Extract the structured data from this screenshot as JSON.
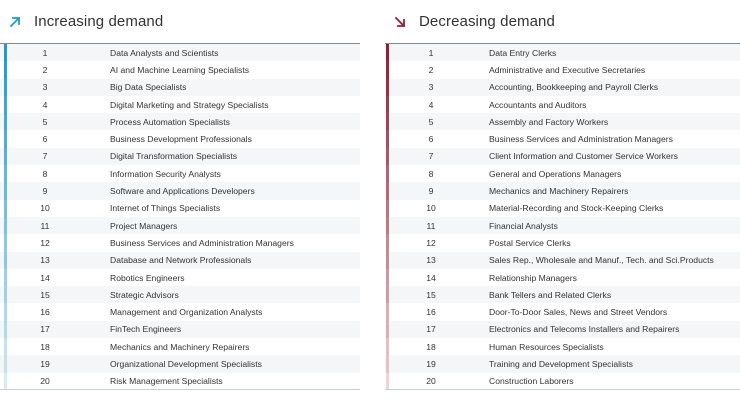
{
  "increasing": {
    "title": "Increasing demand",
    "icon": "arrow-up-right-icon",
    "accent": "#1a9bd7",
    "items": [
      {
        "rank": "1",
        "label": "Data Analysts and Scientists"
      },
      {
        "rank": "2",
        "label": "AI and Machine Learning Specialists"
      },
      {
        "rank": "3",
        "label": "Big Data Specialists"
      },
      {
        "rank": "4",
        "label": "Digital Marketing and Strategy Specialists"
      },
      {
        "rank": "5",
        "label": "Process Automation Specialists"
      },
      {
        "rank": "6",
        "label": "Business Development Professionals"
      },
      {
        "rank": "7",
        "label": "Digital Transformation Specialists"
      },
      {
        "rank": "8",
        "label": "Information Security Analysts"
      },
      {
        "rank": "9",
        "label": "Software and Applications Developers"
      },
      {
        "rank": "10",
        "label": "Internet of Things Specialists"
      },
      {
        "rank": "11",
        "label": "Project Managers"
      },
      {
        "rank": "12",
        "label": "Business Services and Administration Managers"
      },
      {
        "rank": "13",
        "label": "Database and Network Professionals"
      },
      {
        "rank": "14",
        "label": "Robotics Engineers"
      },
      {
        "rank": "15",
        "label": "Strategic Advisors"
      },
      {
        "rank": "16",
        "label": "Management and Organization Analysts"
      },
      {
        "rank": "17",
        "label": "FinTech Engineers"
      },
      {
        "rank": "18",
        "label": "Mechanics and Machinery Repairers"
      },
      {
        "rank": "19",
        "label": "Organizational Development Specialists"
      },
      {
        "rank": "20",
        "label": "Risk Management Specialists"
      }
    ]
  },
  "decreasing": {
    "title": "Decreasing demand",
    "icon": "arrow-down-right-icon",
    "accent": "#9b1b30",
    "items": [
      {
        "rank": "1",
        "label": "Data Entry Clerks"
      },
      {
        "rank": "2",
        "label": "Administrative and Executive Secretaries"
      },
      {
        "rank": "3",
        "label": "Accounting,  Bookkeeping and Payroll Clerks"
      },
      {
        "rank": "4",
        "label": "Accountants and Auditors"
      },
      {
        "rank": "5",
        "label": "Assembly and Factory Workers"
      },
      {
        "rank": "6",
        "label": "Business Services and Administration Managers"
      },
      {
        "rank": "7",
        "label": "Client Information and Customer Service Workers"
      },
      {
        "rank": "8",
        "label": "General and Operations Managers"
      },
      {
        "rank": "9",
        "label": "Mechanics and Machinery Repairers"
      },
      {
        "rank": "10",
        "label": "Material-Recording and Stock-Keeping Clerks"
      },
      {
        "rank": "11",
        "label": "Financial Analysts"
      },
      {
        "rank": "12",
        "label": "Postal Service Clerks"
      },
      {
        "rank": "13",
        "label": "Sales Rep., Wholesale and Manuf., Tech. and Sci.Products"
      },
      {
        "rank": "14",
        "label": "Relationship Managers"
      },
      {
        "rank": "15",
        "label": "Bank Tellers and Related Clerks"
      },
      {
        "rank": "16",
        "label": "Door-To-Door Sales, News and Street Vendors"
      },
      {
        "rank": "17",
        "label": "Electronics and Telecoms Installers and Repairers"
      },
      {
        "rank": "18",
        "label": "Human Resources Specialists"
      },
      {
        "rank": "19",
        "label": "Training and Development Specialists"
      },
      {
        "rank": "20",
        "label": "Construction Laborers"
      }
    ]
  }
}
